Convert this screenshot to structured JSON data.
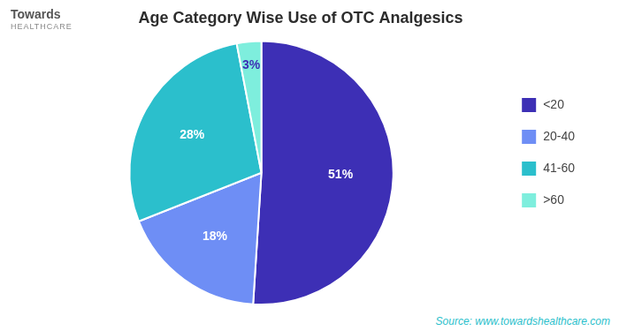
{
  "chart_data": {
    "type": "pie",
    "title": "Age Category Wise Use of OTC Analgesics",
    "categories": [
      "<20",
      "20-40",
      "41-60",
      ">60"
    ],
    "values": [
      51,
      18,
      28,
      3
    ],
    "value_labels": [
      "51%",
      "18%",
      "28%",
      "3%"
    ],
    "colors": [
      "#3d2fb5",
      "#6e8ef5",
      "#2bbfcc",
      "#7eeedd"
    ],
    "data_labels": true,
    "legend": "right",
    "annotations": [
      "Towards",
      "HEALTHCARE",
      "Source: www.towardshealthcare.com"
    ]
  }
}
